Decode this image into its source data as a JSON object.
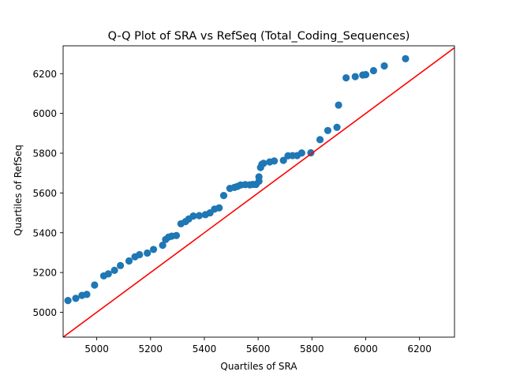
{
  "chart_data": {
    "type": "scatter",
    "title": "Q-Q Plot of SRA vs RefSeq (Total_Coding_Sequences)",
    "xlabel": "Quartiles of SRA",
    "ylabel": "Quartiles of RefSeq",
    "xlim": [
      4875,
      6330
    ],
    "ylim": [
      4875,
      6340
    ],
    "xticks": [
      5000,
      5200,
      5400,
      5600,
      5800,
      6000,
      6200
    ],
    "yticks": [
      5000,
      5200,
      5400,
      5600,
      5800,
      6000,
      6200
    ],
    "grid": false,
    "colors": {
      "points": "#1f77b4",
      "reference_line": "#ff0000"
    },
    "reference_line": {
      "slope": 1,
      "intercept": 0
    },
    "series": [
      {
        "x": [
          4893,
          4922,
          4945,
          4963,
          4992,
          5026,
          5043,
          5066,
          5088,
          5120,
          5142,
          5159,
          5188,
          5211,
          5245,
          5256,
          5267,
          5279,
          5296,
          5313,
          5330,
          5342,
          5359,
          5381,
          5404,
          5421,
          5438,
          5455,
          5472,
          5495,
          5512,
          5523,
          5535,
          5552,
          5569,
          5580,
          5592,
          5603,
          5603,
          5609,
          5614,
          5620,
          5643,
          5660,
          5694,
          5711,
          5728,
          5745,
          5762,
          5796,
          5830,
          5859,
          5893,
          5899,
          5927,
          5961,
          5989,
          6000,
          6029,
          6069,
          6148
        ],
        "y": [
          5059,
          5070,
          5085,
          5090,
          5137,
          5183,
          5193,
          5211,
          5235,
          5258,
          5279,
          5290,
          5298,
          5316,
          5337,
          5366,
          5378,
          5383,
          5386,
          5445,
          5456,
          5469,
          5484,
          5486,
          5491,
          5500,
          5519,
          5525,
          5587,
          5623,
          5628,
          5633,
          5640,
          5642,
          5641,
          5643,
          5643,
          5659,
          5681,
          5728,
          5744,
          5749,
          5756,
          5761,
          5764,
          5787,
          5788,
          5788,
          5801,
          5802,
          5868,
          5914,
          5930,
          6042,
          6179,
          6185,
          6193,
          6195,
          6215,
          6239,
          6275
        ]
      }
    ]
  }
}
